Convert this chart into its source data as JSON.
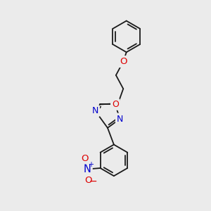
{
  "background_color": "#ebebeb",
  "bond_color": "#1a1a1a",
  "bond_width": 1.3,
  "atom_colors": {
    "O": "#dd0000",
    "N": "#0000cc",
    "C": "#1a1a1a"
  },
  "font_size": 8.5,
  "fig_width": 3.0,
  "fig_height": 3.0,
  "dpi": 100
}
